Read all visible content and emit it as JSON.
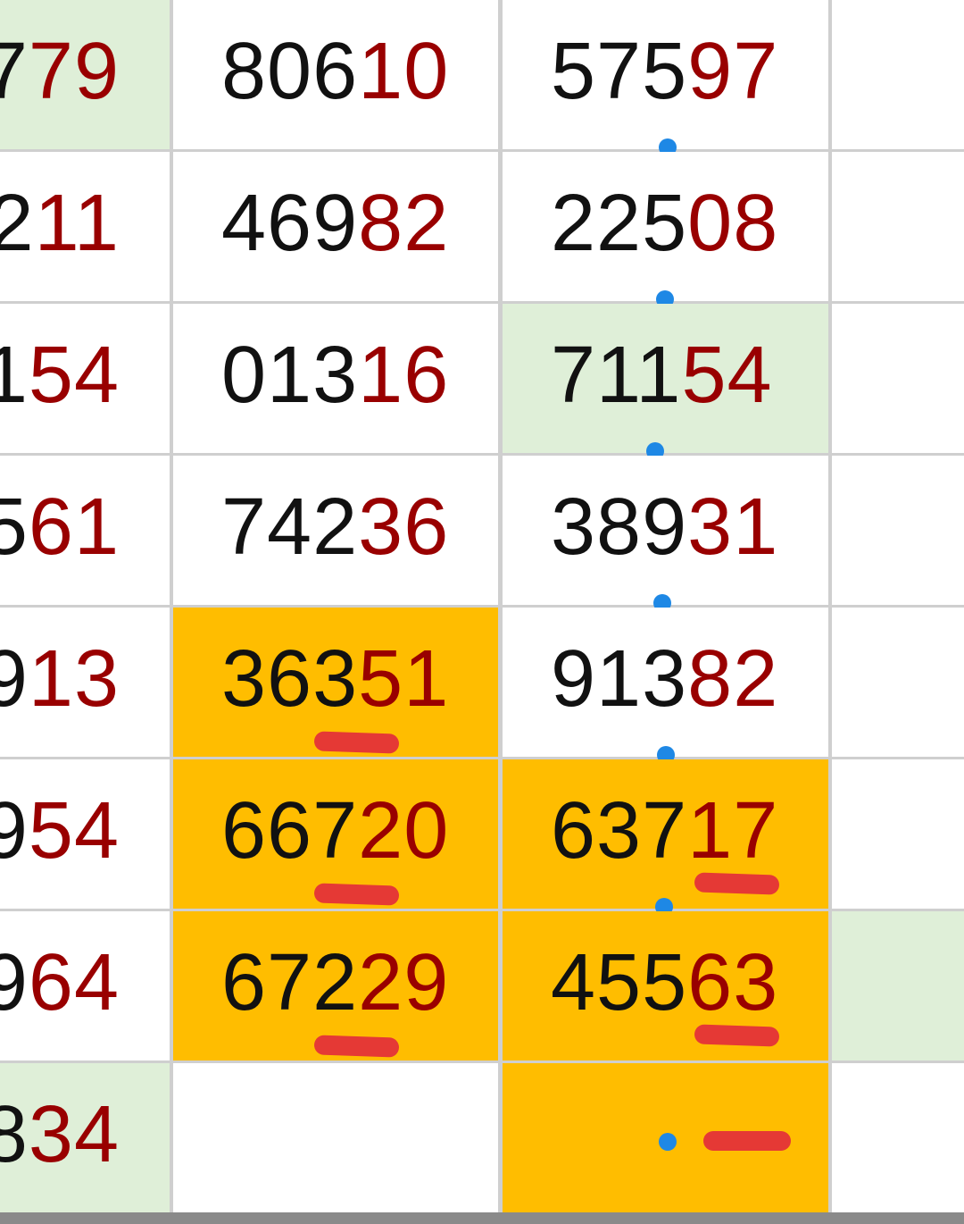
{
  "colors": {
    "green": "#dfefd8",
    "orange": "#ffbd00",
    "red_digits": "#990000",
    "underline": "#e53935",
    "dot": "#1e88e5"
  },
  "rows": [
    {
      "cells": [
        {
          "black": "7",
          "red": "79",
          "fill": "green"
        },
        {
          "black": "806",
          "red": "10"
        },
        {
          "black": "575",
          "red": "97"
        },
        {}
      ],
      "dot": true
    },
    {
      "cells": [
        {
          "black": "2",
          "red": "11"
        },
        {
          "black": "469",
          "red": "82"
        },
        {
          "black": "225",
          "red": "08"
        },
        {}
      ],
      "dot": true
    },
    {
      "cells": [
        {
          "black": "1",
          "red": "54"
        },
        {
          "black": "013",
          "red": "16"
        },
        {
          "black": "711",
          "red": "54",
          "fill": "green"
        },
        {}
      ],
      "dot": true
    },
    {
      "cells": [
        {
          "black": "5",
          "red": "61"
        },
        {
          "black": "742",
          "red": "36"
        },
        {
          "black": "389",
          "red": "31"
        },
        {}
      ],
      "dot": true
    },
    {
      "cells": [
        {
          "black": "9",
          "red": "13"
        },
        {
          "black": "363",
          "red": "51",
          "fill": "orange",
          "underlined": true
        },
        {
          "black": "913",
          "red": "82"
        },
        {}
      ],
      "dot": true
    },
    {
      "cells": [
        {
          "black": "9",
          "red": "54"
        },
        {
          "black": "667",
          "red": "20",
          "fill": "orange",
          "underlined": true
        },
        {
          "black": "637",
          "red": "17",
          "fill": "orange",
          "underlined": true
        },
        {}
      ],
      "dot": true
    },
    {
      "cells": [
        {
          "black": "9",
          "red": "64"
        },
        {
          "black": "672",
          "red": "29",
          "fill": "orange",
          "underlined": true
        },
        {
          "black": "455",
          "red": "63",
          "fill": "orange",
          "underlined": true
        },
        {
          "fill": "green"
        }
      ],
      "dot": false
    },
    {
      "cells": [
        {
          "black": "8",
          "red": "34",
          "fill": "green"
        },
        {},
        {
          "black": "",
          "red": "",
          "fill": "orange",
          "dash": true
        },
        {}
      ],
      "dot": false
    }
  ]
}
